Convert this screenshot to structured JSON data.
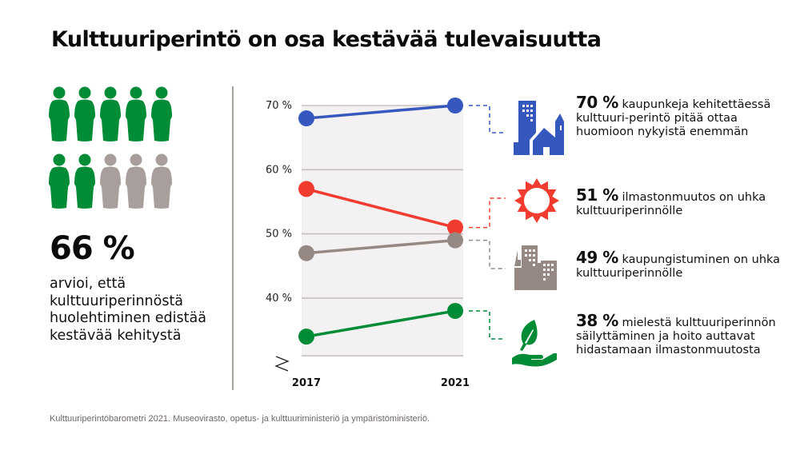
{
  "title": "Kulttuuriperintö on osa kestävää tulevaisuutta",
  "left_panel": {
    "people_total": 10,
    "people_highlighted": 7,
    "highlight_color": "#008c36",
    "rest_color": "#a89e9b",
    "percentage": "66 %",
    "description": "arvioi, että kulttuuriperinnöstä huolehtiminen edistää kestävää kehitystä"
  },
  "chart_data": {
    "type": "line",
    "x": [
      "2017",
      "2021"
    ],
    "y_ticks": [
      "70 %",
      "60 %",
      "50 %",
      "40 %"
    ],
    "ylim": [
      32,
      72
    ],
    "axis_break": true,
    "grid": true,
    "series": [
      {
        "name": "kaupunkeja kehitettäessä kulttuuriperintö pitää ottaa huomioon nykyistä enemmän",
        "values": [
          68,
          70
        ],
        "color": "#3558be"
      },
      {
        "name": "ilmastonmuutos on uhka kulttuuriperinnölle",
        "values": [
          57,
          51
        ],
        "color": "#f23c2f"
      },
      {
        "name": "kaupungistuminen on uhka kulttuuriperinnölle",
        "values": [
          47,
          49
        ],
        "color": "#968984"
      },
      {
        "name": "mielestä kulttuuriperinnön säilyttäminen ja hoito auttavat hidastamaan ilmastonmuutosta",
        "values": [
          34,
          38
        ],
        "color": "#008c36"
      }
    ]
  },
  "callouts": [
    {
      "pct": "70 %",
      "text": "kaupunkeja kehitettäessä kulttuuri-perintö pitää ottaa huomioon nykyistä enemmän",
      "icon": "city-church-icon",
      "color": "#3558be"
    },
    {
      "pct": "51 %",
      "text": "ilmastonmuutos on uhka kulttuuriperinnölle",
      "icon": "sun-icon",
      "color": "#f23c2f"
    },
    {
      "pct": "49 %",
      "text": "kaupungistuminen on uhka kulttuuriperinnölle",
      "icon": "buildings-icon",
      "color": "#968984"
    },
    {
      "pct": "38 %",
      "text": "mielestä kulttuuriperinnön säilyttäminen ja hoito auttavat hidastamaan ilmastonmuutosta",
      "icon": "hand-leaf-icon",
      "color": "#008c36"
    }
  ],
  "footer": "Kulttuuriperintöbarometri 2021. Museovirasto, opetus- ja kulttuuriministeriö ja ympäristöministeriö."
}
